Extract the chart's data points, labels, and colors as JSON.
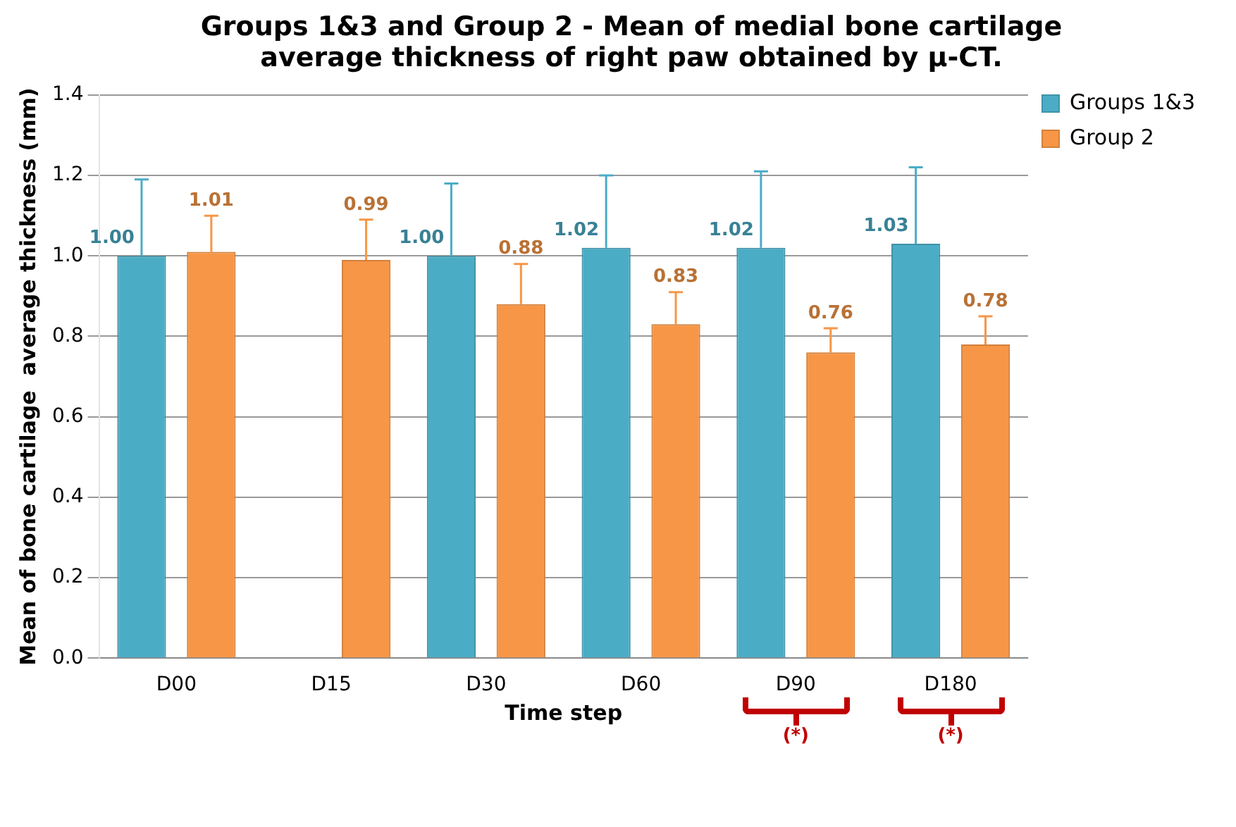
{
  "chart_data": {
    "type": "bar",
    "title": "Groups 1&3 and Group 2 - Mean of medial bone cartilage average thickness of right paw  obtained  by  µ-CT.",
    "xlabel": "Time step",
    "ylabel": "Mean of bone cartilage  average thickness (mm)",
    "categories": [
      "D00",
      "D15",
      "D30",
      "D60",
      "D90",
      "D180"
    ],
    "series": [
      {
        "name": "Groups 1&3",
        "color": "#4bacc6",
        "values": [
          1.0,
          null,
          1.0,
          1.02,
          1.02,
          1.03
        ],
        "value_labels": [
          "1.00",
          null,
          "1.00",
          "1.02",
          "1.02",
          "1.03"
        ],
        "errors": [
          [
            1.0,
            1.19
          ],
          null,
          [
            1.0,
            1.18
          ],
          [
            1.02,
            1.2
          ],
          [
            1.02,
            1.21
          ],
          [
            1.03,
            1.22
          ]
        ]
      },
      {
        "name": "Group 2",
        "color": "#f79646",
        "values": [
          1.01,
          0.99,
          0.88,
          0.83,
          0.76,
          0.78
        ],
        "value_labels": [
          "1.01",
          "0.99",
          "0.88",
          "0.83",
          "0.76",
          "0.78"
        ],
        "errors": [
          [
            1.01,
            1.1
          ],
          [
            0.99,
            1.09
          ],
          [
            0.88,
            0.98
          ],
          [
            0.83,
            0.91
          ],
          [
            0.76,
            0.82
          ],
          [
            0.78,
            0.85
          ]
        ]
      }
    ],
    "ylim": [
      0,
      1.4
    ],
    "yticks": [
      {
        "value": 0,
        "label": "0.0"
      },
      0.2,
      0.4,
      0.6,
      0.8,
      {
        "value": 1,
        "label": "1.0"
      },
      1.2,
      1.4
    ],
    "grid": "y",
    "legend": "top right",
    "annotations": [
      "(*)",
      "(*)"
    ]
  }
}
